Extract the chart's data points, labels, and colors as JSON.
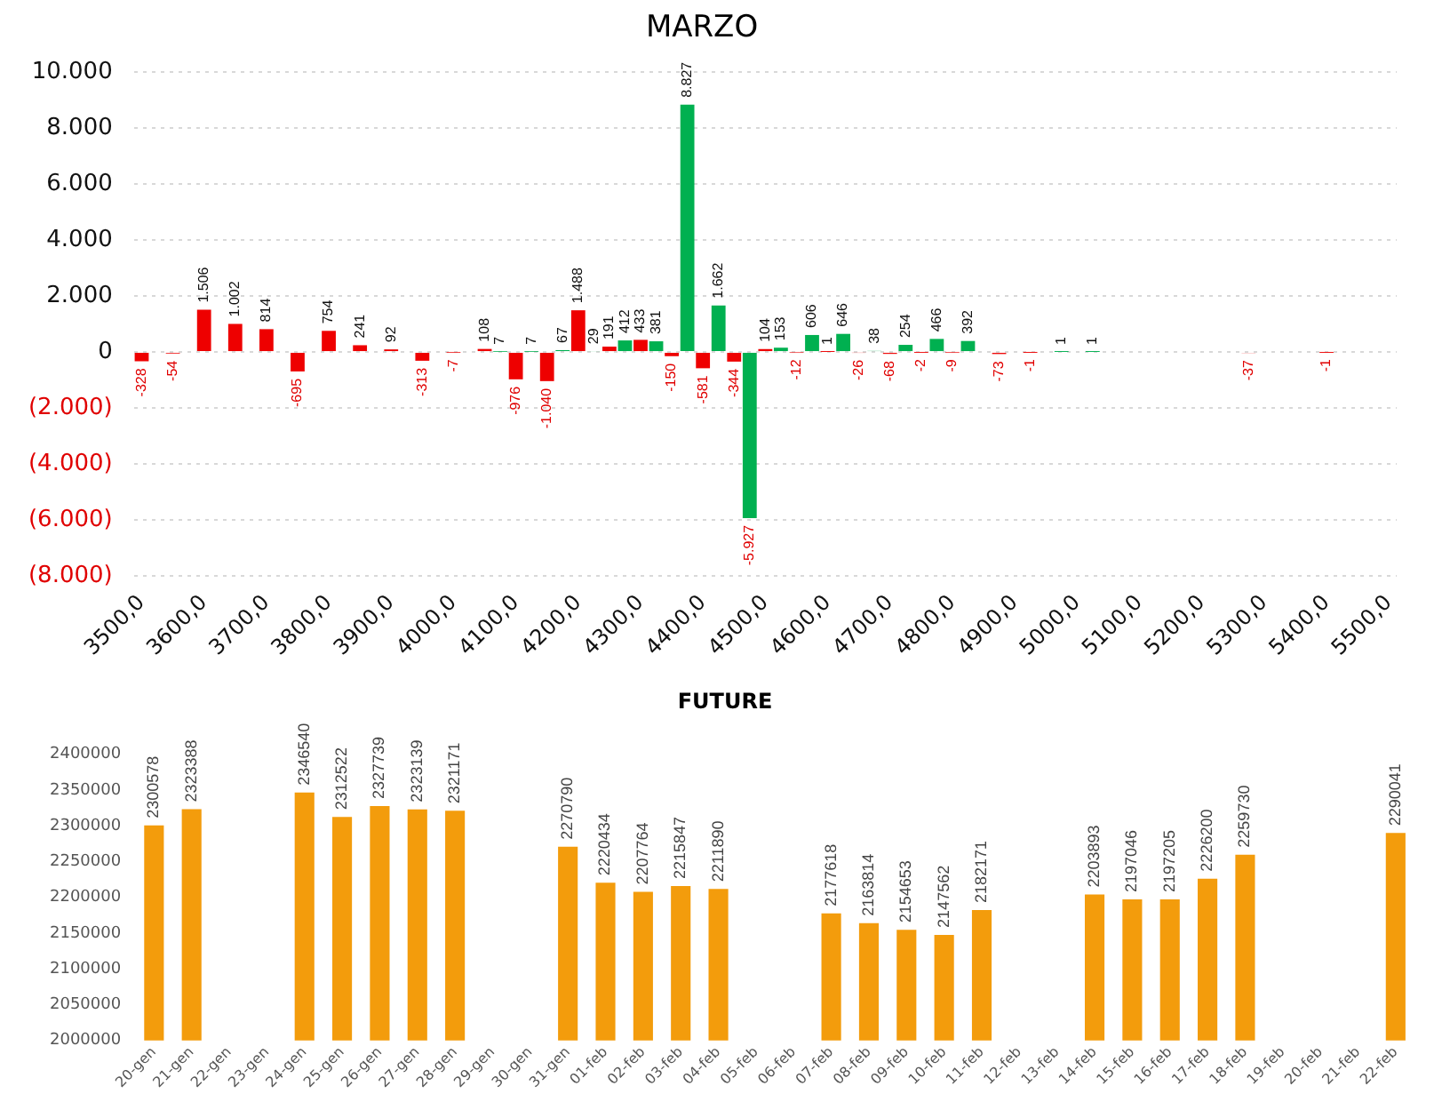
{
  "chart_data": [
    {
      "type": "bar",
      "title": "MARZO",
      "stacked": true,
      "grid": "y",
      "legend": false,
      "categories": [
        "3500,0",
        null,
        null,
        null,
        "3600,0",
        null,
        null,
        null,
        "3700,0",
        null,
        null,
        null,
        "3800,0",
        null,
        null,
        null,
        "3900,0",
        null,
        null,
        null,
        "4000,0",
        null,
        null,
        null,
        "4100,0",
        null,
        null,
        null,
        "4200,0",
        null,
        null,
        null,
        "4300,0",
        null,
        null,
        null,
        "4400,0",
        null,
        null,
        null,
        "4500,0",
        null,
        null,
        null,
        "4600,0",
        null,
        null,
        null,
        "4700,0",
        null,
        null,
        null,
        "4800,0",
        null,
        null,
        null,
        "4900,0",
        null,
        null,
        null,
        "5000,0",
        null,
        null,
        null,
        "5100,0",
        null,
        null,
        null,
        "5200,0",
        null,
        null,
        null,
        "5300,0",
        null,
        null,
        null,
        "5400,0",
        null,
        null,
        null,
        "5500,0"
      ],
      "ylim": [
        -8000,
        10000
      ],
      "yticks": [
        {
          "value": -8000,
          "label": "(8.000)"
        },
        {
          "value": -6000,
          "label": "(6.000)"
        },
        {
          "value": -4000,
          "label": "(4.000)"
        },
        {
          "value": -2000,
          "label": "(2.000)"
        },
        0,
        {
          "value": 2000,
          "label": "2.000"
        },
        {
          "value": 4000,
          "label": "4.000"
        },
        {
          "value": 6000,
          "label": "6.000"
        },
        {
          "value": 8000,
          "label": "8.000"
        },
        {
          "value": 10000,
          "label": "10.000"
        }
      ],
      "series": [
        {
          "color": "#ee0000",
          "values": [
            -328,
            null,
            -54,
            null,
            1506,
            null,
            1002,
            null,
            814,
            null,
            -695,
            null,
            754,
            null,
            241,
            null,
            92,
            null,
            -313,
            null,
            -7,
            null,
            108,
            null,
            -976,
            null,
            -1040,
            null,
            1488,
            null,
            191,
            null,
            433,
            null,
            -150,
            null,
            -581,
            null,
            -344,
            null,
            104,
            null,
            -12,
            null,
            1,
            null,
            -26,
            null,
            -68,
            null,
            -2,
            null,
            -9,
            null,
            null,
            -73,
            null,
            -1,
            null,
            null,
            null,
            null,
            null,
            null,
            null,
            null,
            null,
            null,
            null,
            null,
            null,
            -37,
            null,
            null,
            null,
            null,
            -1,
            null,
            null,
            null,
            null
          ],
          "value_labels": [
            "-328",
            null,
            "-54",
            null,
            "1.506",
            null,
            "1.002",
            null,
            "814",
            null,
            "-695",
            null,
            "754",
            null,
            "241",
            null,
            "92",
            null,
            "-313",
            null,
            "-7",
            null,
            "108",
            null,
            "-976",
            null,
            "-1.040",
            null,
            "1.488",
            null,
            "191",
            null,
            "433",
            null,
            "-150",
            null,
            "-581",
            null,
            "-344",
            null,
            "104",
            null,
            "-12",
            null,
            "1",
            null,
            "-26",
            null,
            "-68",
            null,
            "-2",
            null,
            "-9",
            null,
            null,
            "-73",
            null,
            "-1",
            null,
            null,
            null,
            null,
            null,
            null,
            null,
            null,
            null,
            null,
            null,
            null,
            null,
            "-37",
            null,
            null,
            null,
            null,
            "-1",
            null,
            null,
            null,
            null
          ]
        },
        {
          "color": "#00b050",
          "values": [
            null,
            null,
            null,
            null,
            null,
            null,
            null,
            null,
            null,
            null,
            null,
            null,
            null,
            null,
            null,
            null,
            null,
            null,
            null,
            null,
            null,
            null,
            null,
            7,
            null,
            7,
            null,
            67,
            null,
            29,
            null,
            412,
            null,
            381,
            null,
            8827,
            null,
            1662,
            null,
            -5927,
            null,
            153,
            null,
            606,
            null,
            646,
            null,
            38,
            null,
            254,
            null,
            466,
            null,
            392,
            null,
            null,
            null,
            null,
            null,
            1,
            null,
            1,
            null,
            null,
            null,
            null,
            null,
            null,
            null,
            null,
            null,
            null,
            null,
            null,
            null,
            null,
            null,
            null,
            null,
            null,
            null
          ],
          "value_labels": [
            null,
            null,
            null,
            null,
            null,
            null,
            null,
            null,
            null,
            null,
            null,
            null,
            null,
            null,
            null,
            null,
            null,
            null,
            null,
            null,
            null,
            null,
            null,
            "7",
            null,
            "7",
            null,
            "67",
            null,
            "29",
            null,
            "412",
            null,
            "381",
            null,
            "8.827",
            null,
            "1.662",
            null,
            "-5.927",
            null,
            "153",
            null,
            "606",
            null,
            "646",
            null,
            "38",
            null,
            "254",
            null,
            "466",
            null,
            "392",
            null,
            null,
            null,
            null,
            null,
            "1",
            null,
            "1",
            null,
            null,
            null,
            null,
            null,
            null,
            null,
            null,
            null,
            null,
            null,
            null,
            null,
            null,
            null,
            null,
            null,
            null,
            null
          ]
        }
      ]
    },
    {
      "type": "bar",
      "title": "FUTURE",
      "grid": false,
      "legend": false,
      "data_labels": true,
      "categories": [
        "20-gen",
        "21-gen",
        "22-gen",
        "23-gen",
        "24-gen",
        "25-gen",
        "26-gen",
        "27-gen",
        "28-gen",
        "29-gen",
        "30-gen",
        "31-gen",
        "01-feb",
        "02-feb",
        "03-feb",
        "04-feb",
        "05-feb",
        "06-feb",
        "07-feb",
        "08-feb",
        "09-feb",
        "10-feb",
        "11-feb",
        "12-feb",
        "13-feb",
        "14-feb",
        "15-feb",
        "16-feb",
        "17-feb",
        "18-feb",
        "19-feb",
        "20-feb",
        "21-feb",
        "22-feb"
      ],
      "ylim": [
        2000000,
        2400000
      ],
      "yticks": [
        2000000,
        2050000,
        2100000,
        2150000,
        2200000,
        2250000,
        2300000,
        2350000,
        2400000
      ],
      "series": [
        {
          "color": "#f39c0c",
          "values": [
            2300578,
            2323388,
            null,
            null,
            2346540,
            2312522,
            2327739,
            2323139,
            2321171,
            null,
            null,
            2270790,
            2220434,
            2207764,
            2215847,
            2211890,
            null,
            null,
            2177618,
            2163814,
            2154653,
            2147562,
            2182171,
            null,
            null,
            2203893,
            2197046,
            2197205,
            2226200,
            2259730,
            null,
            null,
            null,
            2290041
          ]
        }
      ]
    }
  ]
}
